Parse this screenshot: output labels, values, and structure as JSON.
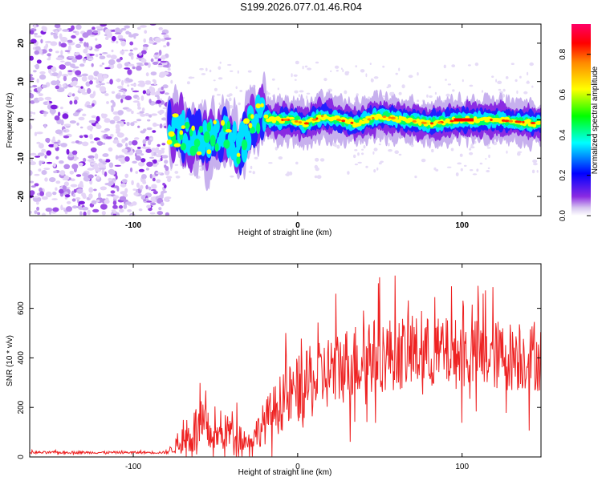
{
  "title": "S199.2026.077.01.46.R04",
  "chart_data": [
    {
      "type": "heatmap",
      "xlabel": "Height of straight line (km)",
      "ylabel": "Frequency (Hz)",
      "xlim": [
        -163,
        148
      ],
      "ylim": [
        -25,
        25
      ],
      "xticks": [
        -100,
        0,
        100
      ],
      "xtick_labels": [
        "-100",
        "0",
        "100"
      ],
      "yticks": [
        -20,
        -10,
        0,
        10,
        20
      ],
      "ytick_labels": [
        "-20",
        "-10",
        "0",
        "10",
        "20"
      ],
      "noise_region_x": [
        -163,
        -78
      ],
      "transition_region_x": [
        -78,
        -20
      ],
      "signal_band_center_hz": 0,
      "signal_centerline": [
        {
          "x": -78,
          "y": -2
        },
        {
          "x": -65,
          "y": -4
        },
        {
          "x": -55,
          "y": -6
        },
        {
          "x": -45,
          "y": -3
        },
        {
          "x": -35,
          "y": -7
        },
        {
          "x": -25,
          "y": 1
        },
        {
          "x": -15,
          "y": 0
        },
        {
          "x": -5,
          "y": 0
        },
        {
          "x": 5,
          "y": -1
        },
        {
          "x": 15,
          "y": 1
        },
        {
          "x": 25,
          "y": 0
        },
        {
          "x": 35,
          "y": -1
        },
        {
          "x": 50,
          "y": 1
        },
        {
          "x": 65,
          "y": 0
        },
        {
          "x": 80,
          "y": -1
        },
        {
          "x": 100,
          "y": 0
        },
        {
          "x": 120,
          "y": 0
        },
        {
          "x": 148,
          "y": -1
        }
      ],
      "colorbar": {
        "label": "Normalized spectral amplitude",
        "range": [
          0.0,
          0.95
        ],
        "ticks": [
          0.0,
          0.2,
          0.4,
          0.6,
          0.8
        ],
        "tick_labels": [
          "0.0",
          "0.2",
          "0.4",
          "0.6",
          "0.8"
        ],
        "colors": [
          "#ffffff",
          "#b39ddb",
          "#7b00ff",
          "#0000ff",
          "#00ffff",
          "#00ff00",
          "#ffff00",
          "#ff8800",
          "#ff0000",
          "#ff0077"
        ]
      }
    },
    {
      "type": "line",
      "xlabel": "Height of straight line (km)",
      "ylabel": "SNR (10 * v/v)",
      "xlim": [
        -163,
        148
      ],
      "ylim": [
        0,
        780
      ],
      "xticks": [
        -100,
        0,
        100
      ],
      "xtick_labels": [
        "-100",
        "0",
        "100"
      ],
      "yticks": [
        0,
        200,
        400,
        600
      ],
      "ytick_labels": [
        "0",
        "200",
        "400",
        "600"
      ],
      "line_color": "#ee2222",
      "envelope": [
        {
          "x": -163,
          "base": 18,
          "amp": 8
        },
        {
          "x": -80,
          "base": 18,
          "amp": 8
        },
        {
          "x": -70,
          "base": 60,
          "amp": 80
        },
        {
          "x": -60,
          "base": 120,
          "amp": 200
        },
        {
          "x": -50,
          "base": 80,
          "amp": 100
        },
        {
          "x": -40,
          "base": 110,
          "amp": 140
        },
        {
          "x": -30,
          "base": 60,
          "amp": 60
        },
        {
          "x": -20,
          "base": 140,
          "amp": 150
        },
        {
          "x": -10,
          "base": 220,
          "amp": 200
        },
        {
          "x": 0,
          "base": 270,
          "amp": 230
        },
        {
          "x": 10,
          "base": 300,
          "amp": 240
        },
        {
          "x": 20,
          "base": 350,
          "amp": 260
        },
        {
          "x": 40,
          "base": 400,
          "amp": 260
        },
        {
          "x": 60,
          "base": 420,
          "amp": 250
        },
        {
          "x": 90,
          "base": 420,
          "amp": 240
        },
        {
          "x": 120,
          "base": 410,
          "amp": 240
        },
        {
          "x": 148,
          "base": 400,
          "amp": 230
        }
      ]
    }
  ]
}
